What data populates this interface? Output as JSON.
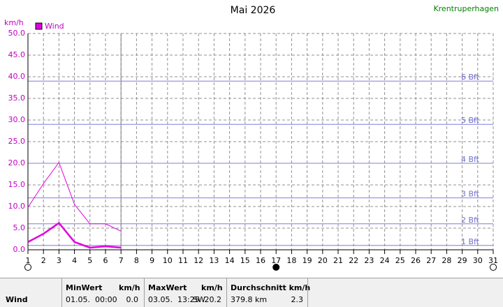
{
  "chart_data": {
    "type": "line",
    "title": "Mai 2026",
    "station": "Krentruperhagen",
    "ylabel": "km/h",
    "x": [
      1,
      2,
      3,
      4,
      5,
      6,
      7
    ],
    "series": [
      {
        "name": "Wind",
        "color": "#e000e0",
        "values": [
          1.8,
          3.7,
          6.2,
          1.8,
          0.5,
          0.8,
          0.5
        ]
      },
      {
        "color": "#e000e0",
        "values": [
          9.8,
          15.3,
          20.2,
          10.5,
          6.0,
          6.0,
          4.3
        ]
      }
    ],
    "xlim": [
      1,
      31
    ],
    "xticks": [
      1,
      2,
      3,
      4,
      5,
      6,
      7,
      8,
      9,
      10,
      11,
      12,
      13,
      14,
      15,
      16,
      17,
      18,
      19,
      20,
      21,
      22,
      23,
      24,
      25,
      26,
      27,
      28,
      29,
      30,
      31
    ],
    "ylim": [
      0,
      50
    ],
    "yticks": [
      {
        "value": 0,
        "label": "0.0"
      },
      {
        "value": 5,
        "label": "5.0"
      },
      {
        "value": 10,
        "label": "10.0"
      },
      {
        "value": 15,
        "label": "15.0"
      },
      {
        "value": 20,
        "label": "20.0"
      },
      {
        "value": 25,
        "label": "25.0"
      },
      {
        "value": 30,
        "label": "30.0"
      },
      {
        "value": 35,
        "label": "35.0"
      },
      {
        "value": 40,
        "label": "40.0"
      },
      {
        "value": 45,
        "label": "45.0"
      },
      {
        "value": 50,
        "label": "50.0"
      }
    ],
    "grid": true,
    "beaufort": [
      {
        "value": 1,
        "label": "1 Bft"
      },
      {
        "value": 6,
        "label": "2 Bft"
      },
      {
        "value": 12,
        "label": "3 Bft"
      },
      {
        "value": 20,
        "label": "4 Bft"
      },
      {
        "value": 29,
        "label": "5 Bft"
      },
      {
        "value": 39,
        "label": "6 Bft"
      }
    ],
    "today_x": 7,
    "moons": [
      {
        "x": 1,
        "filled": false
      },
      {
        "x": 17,
        "filled": true
      },
      {
        "x": 31,
        "filled": false
      }
    ]
  },
  "summary": {
    "label": "Wind",
    "min": {
      "header": "MinWert",
      "unit": "km/h",
      "time": "01.05.  00:00",
      "value": "0.0"
    },
    "max": {
      "header": "MaxWert",
      "unit": "km/h",
      "time": "03.05.  13:25",
      "dir": "SW",
      "value": "20.2"
    },
    "avg": {
      "header": "Durchschnitt km/h",
      "distance": "379.8 km",
      "value": "2.3"
    }
  }
}
